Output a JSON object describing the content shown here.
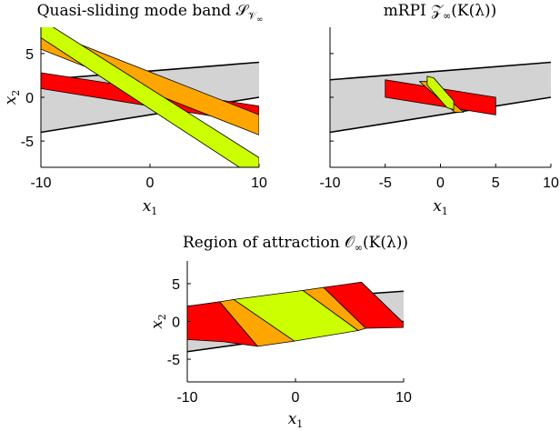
{
  "chart_data": [
    {
      "type": "area",
      "title": "Quasi-sliding mode band 𝒮",
      "title_sub": "𝒱",
      "title_subsub": "∞",
      "xlabel": "x",
      "xlabel_sub": "1",
      "ylabel": "x",
      "ylabel_sub": "2",
      "xlim": [
        -10,
        10
      ],
      "ylim": [
        -8,
        8
      ],
      "xticks": [
        -10,
        0,
        10
      ],
      "xtick_labels": [
        "-10",
        "0",
        "10"
      ],
      "yticks": [
        -5,
        0,
        5
      ],
      "ytick_labels": [
        "-5",
        "0",
        "5"
      ],
      "grid": false,
      "series": [
        {
          "color": "#d3d3d3",
          "edge": "#000000",
          "edge_on": "long",
          "polygon": [
            [
              -10,
              -4
            ],
            [
              10,
              0
            ],
            [
              10,
              4
            ],
            [
              -10,
              2
            ]
          ]
        },
        {
          "color": "#ff0000",
          "edge": "#000000",
          "polygon": [
            [
              -10,
              2.8
            ],
            [
              10,
              -1
            ],
            [
              10,
              -3
            ],
            [
              -10,
              1
            ]
          ]
        },
        {
          "color": "#ffa500",
          "edge": "#000000",
          "polygon": [
            [
              -10,
              7.8
            ],
            [
              -10,
              5.5
            ],
            [
              10,
              -4.3
            ],
            [
              10,
              -2
            ]
          ]
        },
        {
          "color": "#ccff00",
          "edge": "#000000",
          "polygon": [
            [
              -10,
              8.9
            ],
            [
              -10,
              6.8
            ],
            [
              8.2,
              -8
            ],
            [
              10,
              -8
            ],
            [
              10,
              -6.9
            ]
          ]
        }
      ]
    },
    {
      "type": "area",
      "title": "mRPI 𝒵",
      "title_sub": "∞",
      "title_rest": "(K(λ))",
      "xlabel": "x",
      "xlabel_sub": "1",
      "xlim": [
        -10,
        10
      ],
      "ylim": [
        -8,
        8
      ],
      "xticks": [
        -10,
        -5,
        0,
        5,
        10
      ],
      "xtick_labels": [
        "-10",
        "-5",
        "0",
        "5",
        "10"
      ],
      "yticks": [
        -5,
        0,
        5
      ],
      "ytick_labels": [],
      "grid": false,
      "series": [
        {
          "color": "#d3d3d3",
          "edge": "#000000",
          "edge_on": "long",
          "polygon": [
            [
              -10,
              -4
            ],
            [
              10,
              0
            ],
            [
              10,
              4
            ],
            [
              -10,
              2
            ]
          ]
        },
        {
          "color": "#ff0000",
          "edge": "#000000",
          "polygon": [
            [
              -5,
              2
            ],
            [
              5,
              0
            ],
            [
              5,
              -2
            ],
            [
              -5,
              0
            ]
          ]
        },
        {
          "color": "#ffa500",
          "edge": "#000000",
          "polygon": [
            [
              -1.9,
              1.8
            ],
            [
              -1.1,
              1.8
            ],
            [
              2.1,
              -1.7
            ],
            [
              1.3,
              -1.7
            ]
          ]
        },
        {
          "color": "#ccff00",
          "edge": "#000000",
          "polygon": [
            [
              -1.2,
              2.4
            ],
            [
              -0.6,
              2.2
            ],
            [
              1.2,
              -0.4
            ],
            [
              1.2,
              -1.4
            ],
            [
              0.6,
              -1.2
            ],
            [
              -1.2,
              1.4
            ]
          ]
        }
      ]
    },
    {
      "type": "area",
      "title": "Region of attraction 𝒪",
      "title_sub": "∞",
      "title_rest": "(K(λ))",
      "xlabel": "x",
      "xlabel_sub": "1",
      "ylabel": "x",
      "ylabel_sub": "2",
      "xlim": [
        -10,
        10
      ],
      "ylim": [
        -8,
        8
      ],
      "xticks": [
        -10,
        0,
        10
      ],
      "xtick_labels": [
        "-10",
        "0",
        "10"
      ],
      "yticks": [
        -5,
        0,
        5
      ],
      "ytick_labels": [
        "-5",
        "0",
        "5"
      ],
      "grid": false,
      "series": [
        {
          "color": "#d3d3d3",
          "edge": "#000000",
          "edge_on": "long",
          "polygon": [
            [
              -10,
              -4
            ],
            [
              10,
              0
            ],
            [
              10,
              4
            ],
            [
              -10,
              2
            ]
          ]
        },
        {
          "color": "#ff0000",
          "edge": "#000000",
          "polygon": [
            [
              -10,
              2
            ],
            [
              -7,
              2.6
            ],
            [
              -3.5,
              -3.3
            ],
            [
              -10,
              2
            ]
          ]
        },
        {
          "color": "#ff0000",
          "edge": "#000000",
          "polygon": [
            [
              -10,
              2
            ],
            [
              -7,
              2.6
            ],
            [
              -3.5,
              -3.3
            ],
            [
              -6.6,
              -2.7
            ],
            [
              -10,
              -2.4
            ]
          ]
        },
        {
          "color": "#ffa500",
          "edge": "#000000",
          "polygon": [
            [
              -7,
              2.6
            ],
            [
              -5.7,
              2.9
            ],
            [
              -0.1,
              -2.6
            ],
            [
              -3.5,
              -3.3
            ]
          ]
        },
        {
          "color": "#ccff00",
          "edge": "#000000",
          "polygon": [
            [
              -5.7,
              2.9
            ],
            [
              0.7,
              4.1
            ],
            [
              5.8,
              -1.2
            ],
            [
              -0.1,
              -2.6
            ]
          ]
        },
        {
          "color": "#ffa500",
          "edge": "#000000",
          "polygon": [
            [
              0.7,
              4.1
            ],
            [
              2.6,
              4.5
            ],
            [
              6.5,
              -0.9
            ],
            [
              5.8,
              -1.2
            ]
          ]
        },
        {
          "color": "#ff0000",
          "edge": "#000000",
          "polygon": [
            [
              2.6,
              4.5
            ],
            [
              6.1,
              5.2
            ],
            [
              10,
              -0.2
            ],
            [
              10,
              -0.8
            ],
            [
              6.5,
              -0.9
            ]
          ]
        }
      ]
    }
  ]
}
